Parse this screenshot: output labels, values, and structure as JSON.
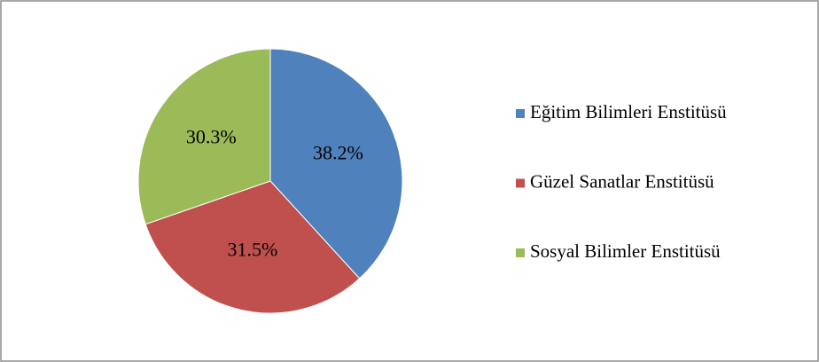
{
  "chart_data": {
    "type": "pie",
    "categories": [
      "Eğitim Bilimleri Enstitüsü",
      "Güzel Sanatlar Enstitüsü",
      "Sosyal Bilimler Enstitüsü"
    ],
    "values": [
      38.2,
      31.5,
      30.3
    ],
    "value_labels": [
      "38.2%",
      "31.5%",
      "30.3%"
    ],
    "colors": [
      "#4f81bd",
      "#c0504d",
      "#9bbb59"
    ],
    "legend": "right"
  }
}
